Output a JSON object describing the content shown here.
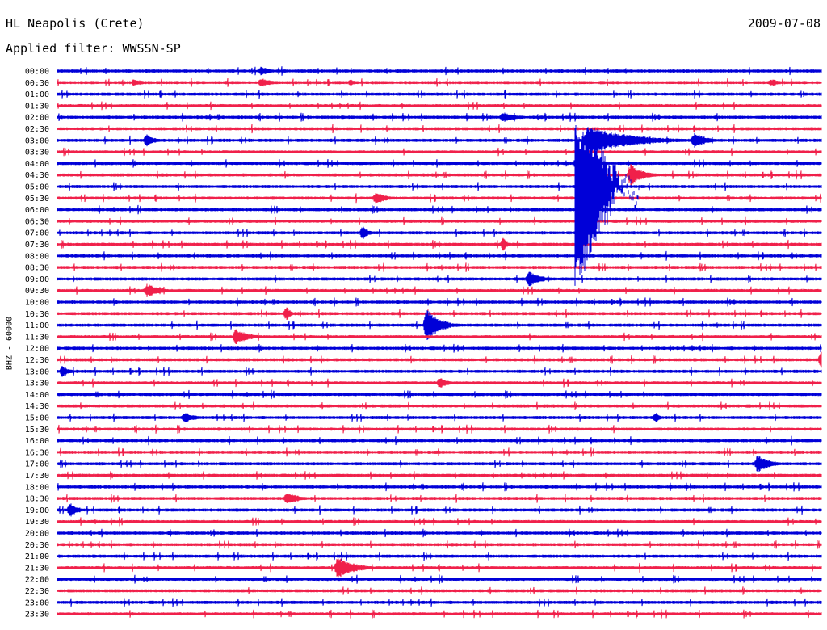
{
  "header": {
    "station": "HL Neapolis (Crete)",
    "date": "2009-07-08",
    "filter_label": "Applied filter: WWSSN-SP"
  },
  "chart_data": {
    "type": "line",
    "title": "HL Neapolis (Crete)",
    "subtitle": "Applied filter: WWSSN-SP",
    "ylabel": "BHZ - 60000",
    "date": "2009-07-08",
    "traces": [
      "00:00",
      "00:30",
      "01:00",
      "01:30",
      "02:00",
      "02:30",
      "03:00",
      "03:30",
      "04:00",
      "04:30",
      "05:00",
      "05:30",
      "06:00",
      "06:30",
      "07:00",
      "07:30",
      "08:00",
      "08:30",
      "09:00",
      "09:30",
      "10:00",
      "10:30",
      "11:00",
      "11:30",
      "12:00",
      "12:30",
      "13:00",
      "13:30",
      "14:00",
      "14:30",
      "15:00",
      "15:30",
      "16:00",
      "16:30",
      "17:00",
      "17:30",
      "18:00",
      "18:30",
      "19:00",
      "19:30",
      "20:00",
      "20:30",
      "21:00",
      "21:30",
      "22:00",
      "22:30",
      "23:00",
      "23:30"
    ],
    "colors": [
      "#0000d8",
      "#f0204a"
    ],
    "trace_minutes": 30,
    "events": [
      {
        "trace": "00:00",
        "minute": 8.0,
        "amp": 6,
        "dur": 1.2
      },
      {
        "trace": "00:30",
        "minute": 8.0,
        "amp": 6,
        "dur": 1.4
      },
      {
        "trace": "00:30",
        "minute": 3.0,
        "amp": 5,
        "dur": 1.2
      },
      {
        "trace": "00:30",
        "minute": 11.5,
        "amp": 4,
        "dur": 1.0
      },
      {
        "trace": "00:30",
        "minute": 28.0,
        "amp": 5,
        "dur": 1.2
      },
      {
        "trace": "02:00",
        "minute": 17.5,
        "amp": 7,
        "dur": 1.5
      },
      {
        "trace": "03:00",
        "minute": 3.5,
        "amp": 8,
        "dur": 1.0
      },
      {
        "trace": "03:00",
        "minute": 25.0,
        "amp": 10,
        "dur": 1.5
      },
      {
        "trace": "03:00",
        "minute": 20.8,
        "amp": 18,
        "dur": 5.0
      },
      {
        "trace": "04:30",
        "minute": 22.5,
        "amp": 14,
        "dur": 1.5
      },
      {
        "trace": "05:30",
        "minute": 12.5,
        "amp": 8,
        "dur": 1.3
      },
      {
        "trace": "07:00",
        "minute": 12.0,
        "amp": 10,
        "dur": 0.6
      },
      {
        "trace": "07:30",
        "minute": 17.5,
        "amp": 9,
        "dur": 0.5
      },
      {
        "trace": "09:00",
        "minute": 18.5,
        "amp": 10,
        "dur": 1.5
      },
      {
        "trace": "09:30",
        "minute": 3.5,
        "amp": 9,
        "dur": 1.6
      },
      {
        "trace": "10:30",
        "minute": 9.0,
        "amp": 10,
        "dur": 0.5
      },
      {
        "trace": "11:00",
        "minute": 14.5,
        "amp": 22,
        "dur": 1.5
      },
      {
        "trace": "11:30",
        "minute": 7.0,
        "amp": 10,
        "dur": 1.6
      },
      {
        "trace": "12:30",
        "minute": 30.0,
        "amp": 12,
        "dur": 0.6
      },
      {
        "trace": "13:00",
        "minute": 0.2,
        "amp": 8,
        "dur": 0.8
      },
      {
        "trace": "13:30",
        "minute": 15.0,
        "amp": 7,
        "dur": 1.3
      },
      {
        "trace": "15:00",
        "minute": 5.0,
        "amp": 7,
        "dur": 1.4
      },
      {
        "trace": "15:00",
        "minute": 23.5,
        "amp": 8,
        "dur": 0.4
      },
      {
        "trace": "17:00",
        "minute": 27.5,
        "amp": 12,
        "dur": 1.4
      },
      {
        "trace": "18:30",
        "minute": 9.0,
        "amp": 9,
        "dur": 1.4
      },
      {
        "trace": "19:00",
        "minute": 0.5,
        "amp": 9,
        "dur": 1.0
      },
      {
        "trace": "21:30",
        "minute": 11.0,
        "amp": 14,
        "dur": 2.0
      }
    ]
  }
}
